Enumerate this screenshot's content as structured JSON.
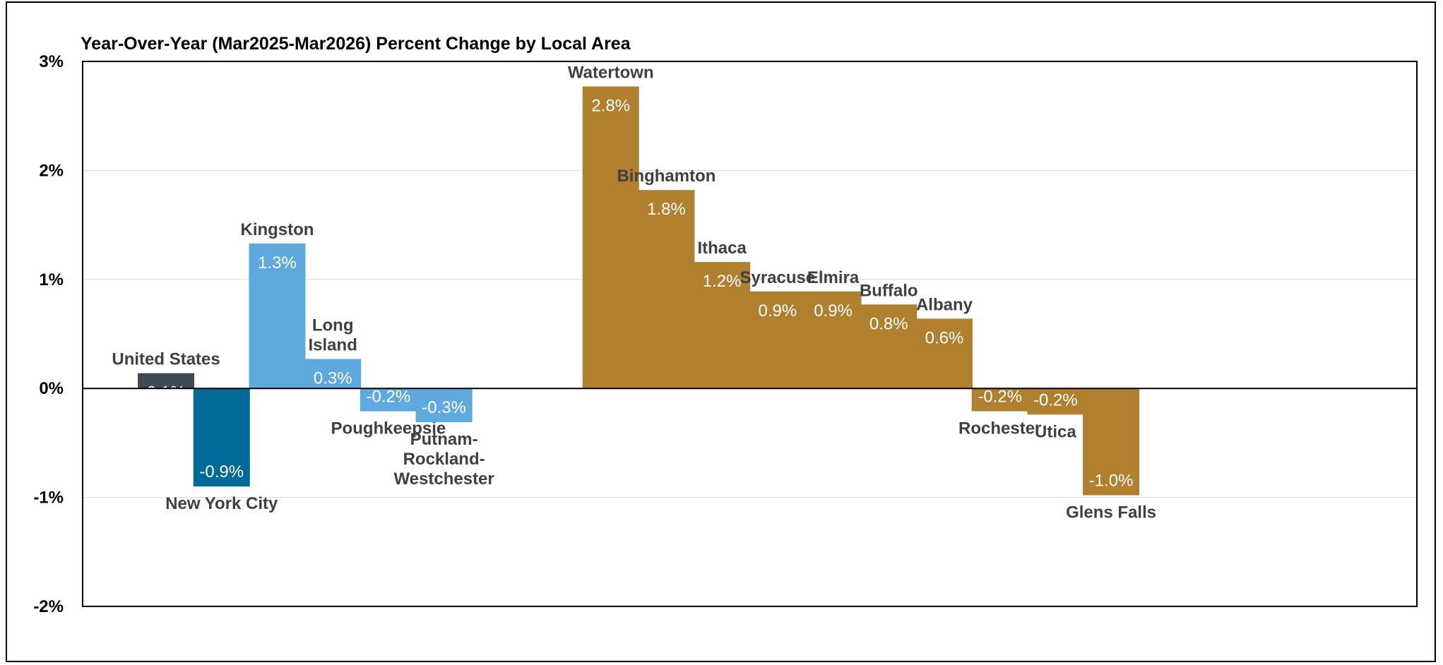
{
  "chart_data": {
    "type": "bar",
    "title": "Year-Over-Year (Mar2025-Mar2026) Percent Change by Local Area",
    "xlabel": "",
    "ylabel": "",
    "ylim": [
      -2,
      3
    ],
    "yticks": [
      "-2%",
      "-1%",
      "0%",
      "1%",
      "2%",
      "3%"
    ],
    "ytick_values": [
      -2,
      -1,
      0,
      1,
      2,
      3
    ],
    "grid": true,
    "legend": "none",
    "categories": [
      "United States",
      "New York City",
      "Kingston",
      "Long Island",
      "Poughkeepsie",
      "Putnam-Rockland-Westchester",
      "Watertown",
      "Binghamton",
      "Ithaca",
      "Syracuse",
      "Elmira",
      "Buffalo",
      "Albany",
      "Rochester",
      "Utica",
      "Glens Falls"
    ],
    "category_label_lines": [
      [
        "United States"
      ],
      [
        "New York City"
      ],
      [
        "Kingston"
      ],
      [
        "Long",
        "Island"
      ],
      [
        "Poughkeepsie"
      ],
      [
        "Putnam-",
        "Rockland-",
        "Westchester"
      ],
      [
        "Watertown"
      ],
      [
        "Binghamton"
      ],
      [
        "Ithaca"
      ],
      [
        "Syracuse"
      ],
      [
        "Elmira"
      ],
      [
        "Buffalo"
      ],
      [
        "Albany"
      ],
      [
        "Rochester"
      ],
      [
        "Utica"
      ],
      [
        "Glens Falls"
      ]
    ],
    "values": [
      0.14,
      -0.9,
      1.33,
      0.27,
      -0.21,
      -0.31,
      2.77,
      1.82,
      1.16,
      0.89,
      0.89,
      0.77,
      0.64,
      -0.21,
      -0.24,
      -0.98
    ],
    "value_labels": [
      "0.1%",
      "-0.9%",
      "1.3%",
      "0.3%",
      "-0.2%",
      "-0.3%",
      "2.8%",
      "1.8%",
      "1.2%",
      "0.9%",
      "0.9%",
      "0.8%",
      "0.6%",
      "-0.2%",
      "-0.2%",
      "-1.0%"
    ],
    "colors": [
      "#404a55",
      "#006a99",
      "#5ea9de",
      "#5ea9de",
      "#5ea9de",
      "#5ea9de",
      "#b0802f",
      "#b0802f",
      "#b0802f",
      "#b0802f",
      "#b0802f",
      "#b0802f",
      "#b0802f",
      "#b0802f",
      "#b0802f",
      "#b0802f"
    ]
  }
}
